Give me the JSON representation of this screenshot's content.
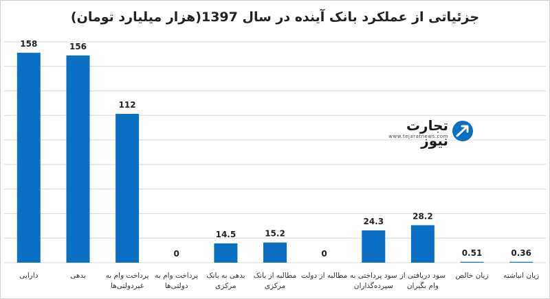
{
  "chart_data": {
    "type": "bar",
    "title": "جزئیاتی از عملکرد بانک آینده در سال 1397(هزار میلیارد تومان)",
    "xlabel": "",
    "ylabel": "",
    "ylim": [
      0,
      160
    ],
    "grid": true,
    "legend": "none",
    "bar_color": "#0b6fc4",
    "categories": [
      [
        "دارایی"
      ],
      [
        "بدهی"
      ],
      [
        "پرداخت وام به",
        "غیردولتی‌ها"
      ],
      [
        "پرداخت وام به",
        "دولتی‌ها"
      ],
      [
        "بدهی به بانک",
        "مرکزی"
      ],
      [
        "مطالبه از بانک",
        "مرکزی"
      ],
      [
        "مطالبه از دولت"
      ],
      [
        "سود پرداختی به",
        "سپرده‌گذاران"
      ],
      [
        "سود دریافتی از",
        "وام بگیران"
      ],
      [
        "زیان خالص"
      ],
      [
        "زیان انباشته"
      ]
    ],
    "values": [
      158,
      156,
      112,
      0,
      14.5,
      15.2,
      0,
      24.3,
      28.2,
      0.51,
      0.36
    ],
    "labels": [
      "158",
      "156",
      "112",
      "0",
      "14.5",
      "15.2",
      "0",
      "24.3",
      "28.2",
      "0.51",
      "0.36"
    ]
  },
  "watermark": {
    "brand": "تجارت نیوز",
    "url": "www.tejaratnews.com",
    "icon": "arrow-circle-logo-icon",
    "color": "#0b6fc4"
  }
}
